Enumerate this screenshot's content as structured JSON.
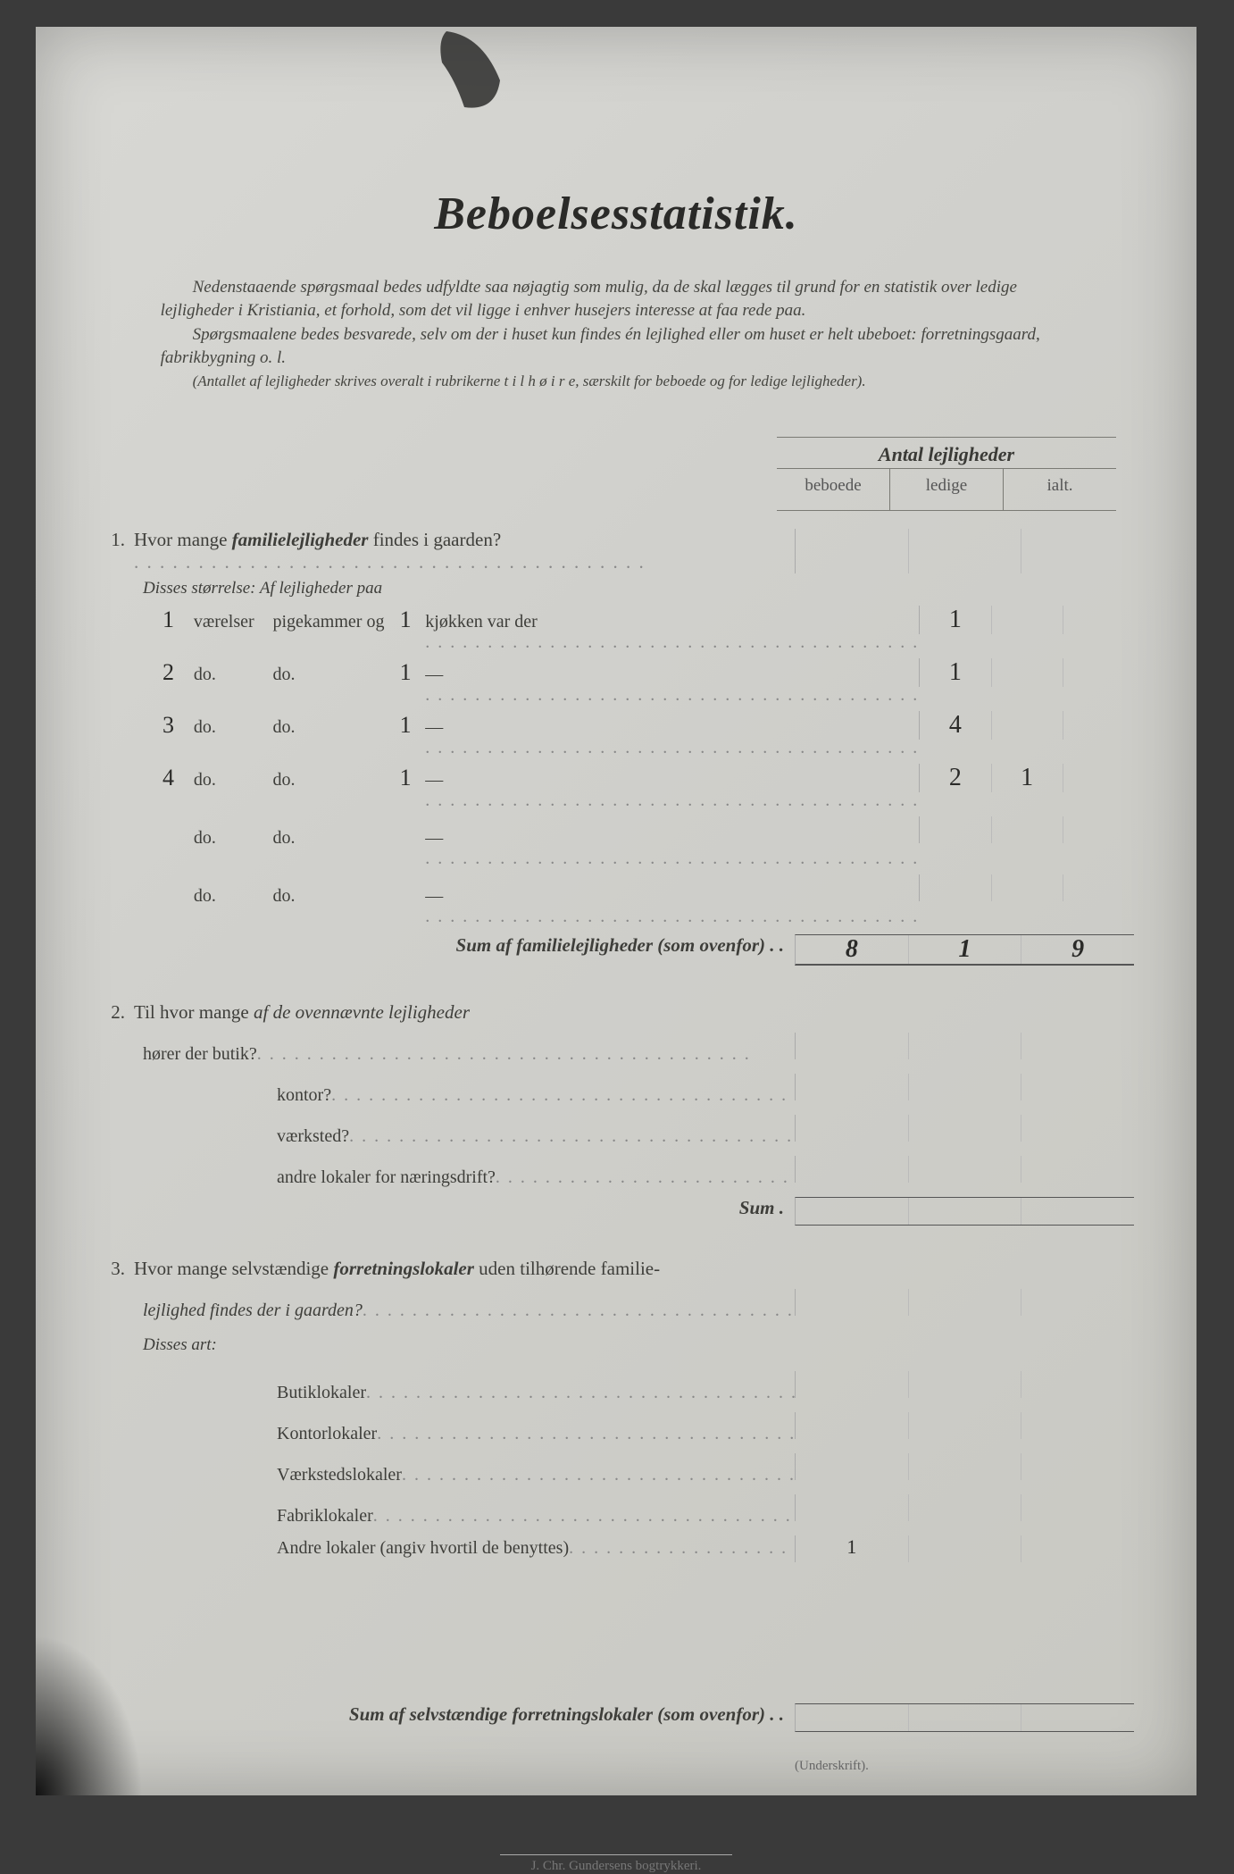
{
  "title": "Beboelsesstatistik.",
  "intro": {
    "p1": "Nedenstaaende spørgsmaal bedes udfyldte saa nøjagtig som mulig, da de skal lægges til grund for en statistik over ledige lejligheder i Kristiania, et forhold, som det vil ligge i enhver husejers interesse at faa rede paa.",
    "p2": "Spørgsmaalene bedes besvarede, selv om der i huset kun findes én lejlighed eller om huset er helt ubeboet: forretningsgaard, fabrikbygning o. l.",
    "p3": "(Antallet af lejligheder skrives overalt i rubrikerne t i l  h ø i r e, særskilt for beboede og for ledige lejligheder)."
  },
  "cols": {
    "header": "Antal lejligheder",
    "c1": "beboede",
    "c2": "ledige",
    "c3": "ialt."
  },
  "q1": {
    "num": "1.",
    "text_a": "Hvor mange ",
    "text_em": "familielejligheder",
    "text_b": " findes i gaarden?",
    "sub": "Disses størrelse:   Af lejligheder paa",
    "headers": {
      "vaer": "værelser",
      "pig": "pigekammer og",
      "kjk": "kjøkken var der"
    },
    "do": "do.",
    "rows": [
      {
        "n": "1",
        "k": "1",
        "beb": "1",
        "led": "",
        "ialt": ""
      },
      {
        "n": "2",
        "k": "1",
        "beb": "1",
        "led": "",
        "ialt": ""
      },
      {
        "n": "3",
        "k": "1",
        "beb": "4",
        "led": "",
        "ialt": ""
      },
      {
        "n": "4",
        "k": "1",
        "beb": "2",
        "led": "1",
        "ialt": ""
      },
      {
        "n": "",
        "k": "",
        "beb": "",
        "led": "",
        "ialt": ""
      },
      {
        "n": "",
        "k": "",
        "beb": "",
        "led": "",
        "ialt": ""
      }
    ],
    "sum_label": "Sum af familielejligheder (som ovenfor) . .",
    "sum": {
      "beb": "8",
      "led": "1",
      "ialt": "9"
    }
  },
  "q2": {
    "num": "2.",
    "text_a": "Til hvor mange ",
    "text_em": "af de ovennævnte lejligheder",
    "line2": "hører der butik?",
    "items": [
      "kontor?",
      "værksted?",
      "andre lokaler for næringsdrift?"
    ],
    "sum_label": "Sum ."
  },
  "q3": {
    "num": "3.",
    "text_a": "Hvor mange selvstændige ",
    "text_em": "forretningslokaler",
    "text_b": " uden tilhørende familie-",
    "line2": "lejlighed findes der i gaarden?",
    "sub": "Disses art:",
    "items": [
      "Butiklokaler",
      "Kontorlokaler",
      "Værkstedslokaler",
      "Fabriklokaler",
      "Andre lokaler (angiv hvortil de benyttes)"
    ],
    "andre_val": "1",
    "sum_label": "Sum af selvstændige forretningslokaler (som ovenfor) . ."
  },
  "underskrift": "(Underskrift).",
  "printer": "J. Chr. Gundersens bogtrykkeri."
}
